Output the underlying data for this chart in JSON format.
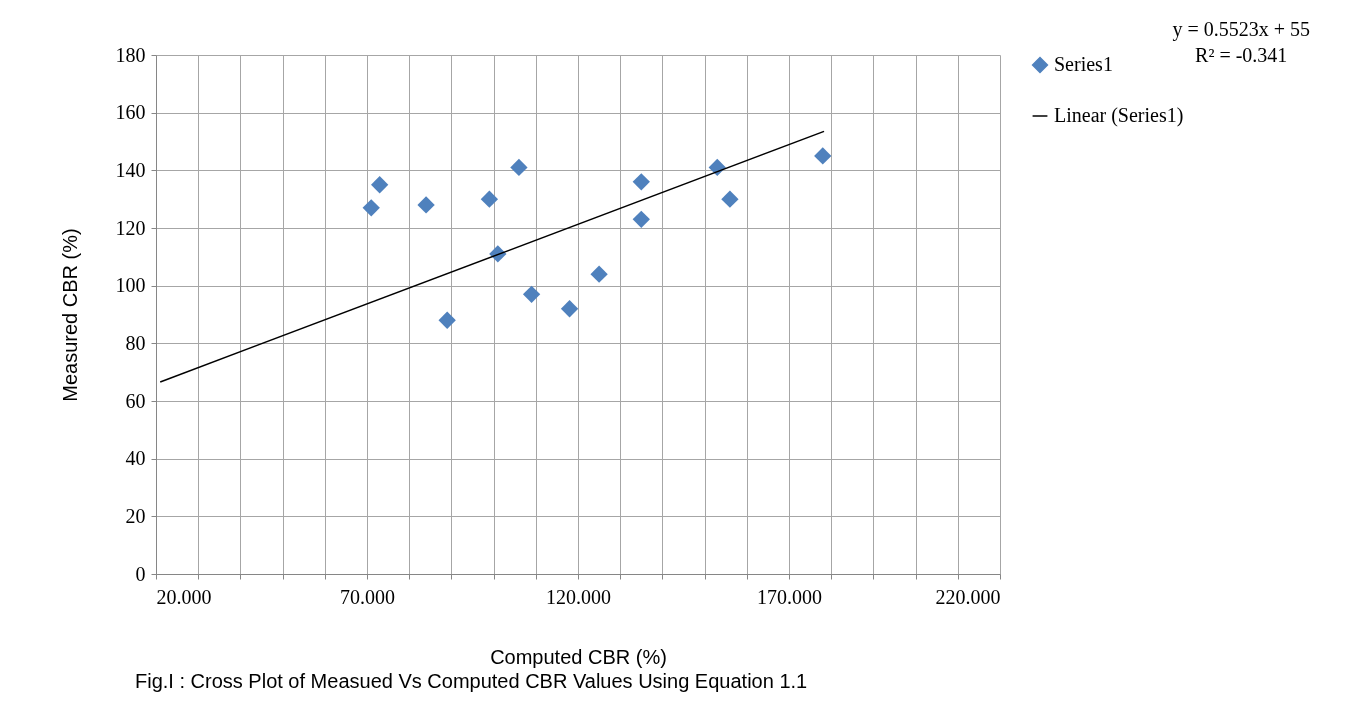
{
  "chart_data": {
    "type": "scatter",
    "xlabel": "Computed CBR (%)",
    "ylabel": "Measured CBR (%)",
    "series": [
      {
        "name": "Series1",
        "color": "#4f81bd",
        "marker": "diamond",
        "x": [
          71,
          73,
          84,
          89,
          99,
          101,
          106,
          109,
          118,
          125,
          135,
          135,
          153,
          156,
          178
        ],
        "values": [
          127,
          135,
          128,
          88,
          130,
          111,
          141,
          97,
          92,
          104,
          136,
          123,
          141,
          130,
          145
        ]
      },
      {
        "name": "Linear (Series1)",
        "type": "line",
        "color": "#000000",
        "marker": "none",
        "x": [
          21,
          178.3
        ],
        "values": [
          66.6,
          153.5
        ]
      }
    ],
    "xlim": [
      20,
      220
    ],
    "xticks": [
      {
        "value": 20,
        "label": "20.000"
      },
      {
        "value": 30,
        "label": null
      },
      {
        "value": 40,
        "label": null
      },
      {
        "value": 50,
        "label": null
      },
      {
        "value": 60,
        "label": null
      },
      {
        "value": 70,
        "label": "70.000"
      },
      {
        "value": 80,
        "label": null
      },
      {
        "value": 90,
        "label": null
      },
      {
        "value": 100,
        "label": null
      },
      {
        "value": 110,
        "label": null
      },
      {
        "value": 120,
        "label": "120.000"
      },
      {
        "value": 130,
        "label": null
      },
      {
        "value": 140,
        "label": null
      },
      {
        "value": 150,
        "label": null
      },
      {
        "value": 160,
        "label": null
      },
      {
        "value": 170,
        "label": "170.000"
      },
      {
        "value": 180,
        "label": null
      },
      {
        "value": 190,
        "label": null
      },
      {
        "value": 200,
        "label": null
      },
      {
        "value": 210,
        "label": null
      },
      {
        "value": 220,
        "label": "220.000"
      }
    ],
    "ylim": [
      0,
      180
    ],
    "yticks": [
      0,
      20,
      40,
      60,
      80,
      100,
      120,
      140,
      160,
      180
    ],
    "grid": true,
    "legend": "right",
    "annotations": [
      "y = 0.5523x + 55",
      "R² = -0.341",
      "Fig.I : Cross Plot of Measued Vs Computed CBR Values Using Equation 1.1"
    ]
  }
}
